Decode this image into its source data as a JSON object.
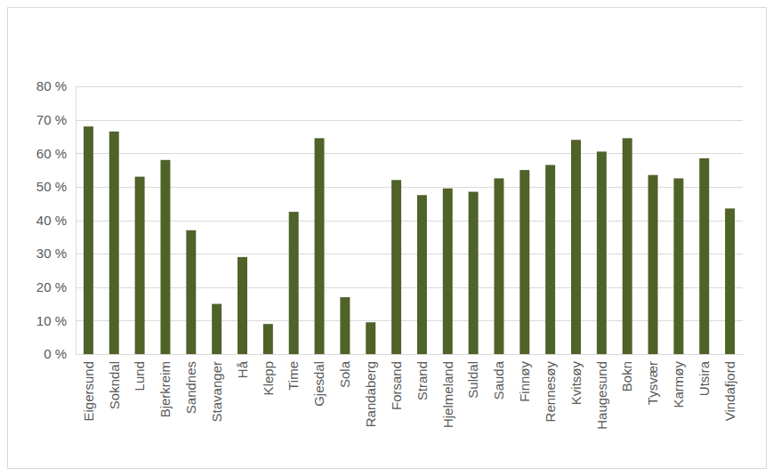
{
  "chart_data": {
    "type": "bar",
    "categories": [
      "Eigersund",
      "Sokndal",
      "Lund",
      "Bjerkreim",
      "Sandnes",
      "Stavanger",
      "Hå",
      "Klepp",
      "Time",
      "Gjesdal",
      "Sola",
      "Randaberg",
      "Forsand",
      "Strand",
      "Hjelmeland",
      "Suldal",
      "Sauda",
      "Finnøy",
      "Rennesøy",
      "Kvitsøy",
      "Haugesund",
      "Bokn",
      "Tysvær",
      "Karmøy",
      "Utsira",
      "Vindafjord"
    ],
    "values": [
      68,
      66.5,
      53,
      58,
      37,
      15,
      29,
      9,
      42.5,
      64.5,
      17,
      9.5,
      52,
      47.5,
      49.5,
      48.5,
      52.5,
      55,
      56.5,
      64,
      60.5,
      64.5,
      53.5,
      52.5,
      58.5,
      43.5
    ],
    "color": "#4f6228",
    "ylim": [
      0,
      80
    ],
    "yticks": [
      {
        "value": 0,
        "label": "0 %"
      },
      {
        "value": 10,
        "label": "10 %"
      },
      {
        "value": 20,
        "label": "20 %"
      },
      {
        "value": 30,
        "label": "30 %"
      },
      {
        "value": 40,
        "label": "40 %"
      },
      {
        "value": 50,
        "label": "50 %"
      },
      {
        "value": 60,
        "label": "60 %"
      },
      {
        "value": 70,
        "label": "70 %"
      },
      {
        "value": 80,
        "label": "80 %"
      }
    ],
    "grid": true
  }
}
